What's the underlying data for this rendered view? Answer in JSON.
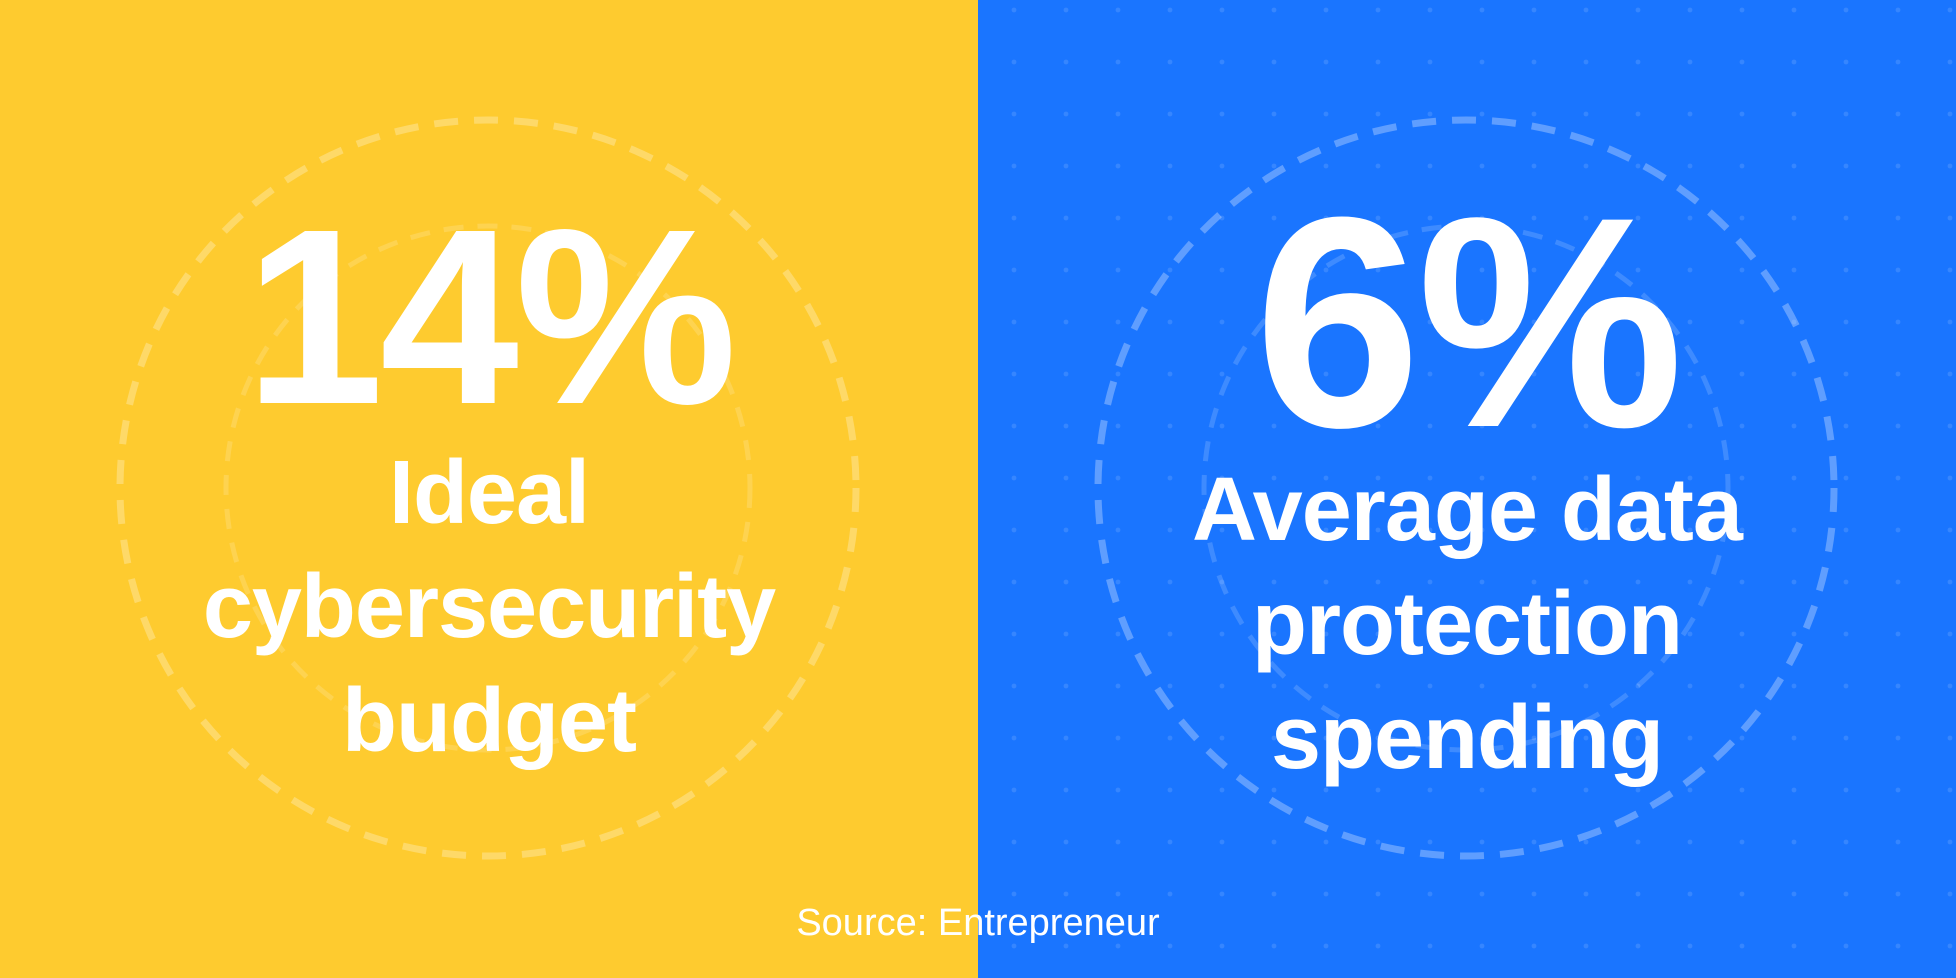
{
  "colors": {
    "left_panel": "#FECB2F",
    "right_panel": "#1A75FF",
    "text": "#FFFFFF"
  },
  "left_stat": {
    "value": "14%",
    "label_lines": [
      "Ideal",
      "cybersecurity",
      "budget"
    ]
  },
  "right_stat": {
    "value": "6%",
    "label_lines": [
      "Average data",
      "protection",
      "spending"
    ]
  },
  "source": "Source: Entrepreneur"
}
